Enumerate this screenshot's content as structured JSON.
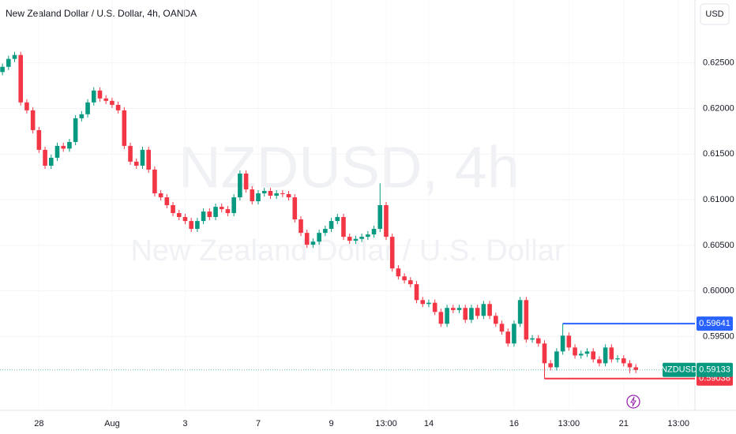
{
  "chart_data": {
    "type": "candlestick",
    "title": "New Zealand Dollar / U.S. Dollar, 4h, OANDA",
    "watermark_symbol": "NZDUSD, 4h",
    "watermark_name": "New Zealand Dollar / U.S. Dollar",
    "currency": "USD",
    "up_color": "#089981",
    "down_color": "#f23645",
    "open": [
      0.624,
      0.62457,
      0.62544,
      0.62587,
      0.62067,
      0.6198,
      0.61763,
      0.61547,
      0.61373,
      0.6146,
      0.6159,
      0.6156,
      0.61633,
      0.61893,
      0.61937,
      0.62067,
      0.62197,
      0.6211,
      0.62084,
      0.6204,
      0.6198,
      0.6159,
      0.61417,
      0.61373,
      0.61547,
      0.6133,
      0.6107,
      0.61026,
      0.6094,
      0.60853,
      0.6081,
      0.60766,
      0.6068,
      0.60766,
      0.6087,
      0.6081,
      0.60922,
      0.60896,
      0.60853,
      0.61026,
      0.61287,
      0.61113,
      0.60983,
      0.6107,
      0.61096,
      0.61044,
      0.6107,
      0.61061,
      0.61026,
      0.60784,
      0.60636,
      0.60506,
      0.6054,
      0.60636,
      0.6068,
      0.60766,
      0.6081,
      0.60593,
      0.6055,
      0.6057,
      0.60593,
      0.60619,
      0.6068,
      0.6094,
      0.60593,
      0.60246,
      0.60159,
      0.60116,
      0.60073,
      0.59899,
      0.59856,
      0.5987,
      0.59769,
      0.59639,
      0.59813,
      0.5979,
      0.59813,
      0.59683,
      0.59813,
      0.59726,
      0.59856,
      0.59726,
      0.59639,
      0.59553,
      0.59423,
      0.59639,
      0.59899,
      0.59466,
      0.5948,
      0.59423,
      0.59206,
      0.59162,
      0.59336,
      0.59509,
      0.59379,
      0.59292,
      0.5931,
      0.59336,
      0.59249,
      0.59206,
      0.59379,
      0.59249,
      0.5926,
      0.59206,
      0.59162
    ],
    "high": [
      0.62492,
      0.62579,
      0.62622,
      0.62622,
      0.62102,
      0.62015,
      0.61798,
      0.61582,
      0.61495,
      0.61625,
      0.61625,
      0.61668,
      0.61928,
      0.61972,
      0.62102,
      0.62232,
      0.62232,
      0.62145,
      0.62119,
      0.62075,
      0.62015,
      0.61625,
      0.61452,
      0.61582,
      0.61582,
      0.61365,
      0.61105,
      0.61061,
      0.60975,
      0.60888,
      0.60845,
      0.60801,
      0.60801,
      0.60905,
      0.60905,
      0.60957,
      0.60957,
      0.60931,
      0.61061,
      0.61322,
      0.61322,
      0.61148,
      0.61105,
      0.61131,
      0.61131,
      0.61105,
      0.61105,
      0.61096,
      0.61061,
      0.60819,
      0.60671,
      0.60575,
      0.60671,
      0.60715,
      0.60801,
      0.60845,
      0.60845,
      0.60628,
      0.60605,
      0.60628,
      0.60654,
      0.60715,
      0.6118,
      0.60975,
      0.60628,
      0.60281,
      0.60194,
      0.60151,
      0.60108,
      0.59934,
      0.59905,
      0.59905,
      0.59804,
      0.59848,
      0.59848,
      0.59848,
      0.59848,
      0.59848,
      0.59848,
      0.59891,
      0.59891,
      0.59761,
      0.59674,
      0.59588,
      0.59674,
      0.59934,
      0.59934,
      0.59515,
      0.59515,
      0.59458,
      0.59241,
      0.59371,
      0.59641,
      0.59544,
      0.59414,
      0.59345,
      0.59371,
      0.59371,
      0.59284,
      0.59414,
      0.59414,
      0.59295,
      0.59295,
      0.59241,
      0.59197
    ],
    "low": [
      0.62365,
      0.62422,
      0.62509,
      0.62032,
      0.61945,
      0.61728,
      0.61512,
      0.61338,
      0.61338,
      0.61425,
      0.61525,
      0.61525,
      0.61598,
      0.61858,
      0.61902,
      0.62032,
      0.62075,
      0.62049,
      0.62005,
      0.61945,
      0.61555,
      0.61382,
      0.61338,
      0.61338,
      0.61295,
      0.61035,
      0.60991,
      0.60905,
      0.60818,
      0.60775,
      0.60731,
      0.60645,
      0.60645,
      0.60731,
      0.60775,
      0.60775,
      0.60861,
      0.60818,
      0.60818,
      0.60991,
      0.61078,
      0.60948,
      0.60948,
      0.61035,
      0.61009,
      0.61009,
      0.61026,
      0.60991,
      0.60749,
      0.60601,
      0.60471,
      0.60471,
      0.60505,
      0.60601,
      0.60645,
      0.60731,
      0.60558,
      0.60515,
      0.60515,
      0.60535,
      0.60558,
      0.60584,
      0.60645,
      0.60558,
      0.60211,
      0.60124,
      0.60081,
      0.60038,
      0.59864,
      0.59821,
      0.59821,
      0.59734,
      0.59604,
      0.59604,
      0.59755,
      0.59755,
      0.59648,
      0.59648,
      0.59691,
      0.59691,
      0.59691,
      0.59604,
      0.59518,
      0.59388,
      0.59388,
      0.59604,
      0.59431,
      0.59431,
      0.59388,
      0.59038,
      0.59127,
      0.59127,
      0.59301,
      0.59344,
      0.59257,
      0.59257,
      0.59275,
      0.59214,
      0.59171,
      0.59171,
      0.59214,
      0.59214,
      0.59171,
      0.59098,
      0.59098
    ],
    "close": [
      0.62457,
      0.62544,
      0.62587,
      0.62067,
      0.6198,
      0.61763,
      0.61547,
      0.61373,
      0.6146,
      0.6159,
      0.6156,
      0.61633,
      0.61893,
      0.61937,
      0.62067,
      0.62197,
      0.6211,
      0.62084,
      0.6204,
      0.6198,
      0.6159,
      0.61417,
      0.61373,
      0.61547,
      0.6133,
      0.6107,
      0.61026,
      0.6094,
      0.60853,
      0.6081,
      0.60766,
      0.6068,
      0.60766,
      0.6087,
      0.6081,
      0.60922,
      0.60896,
      0.60853,
      0.61026,
      0.61287,
      0.61113,
      0.60983,
      0.6107,
      0.61096,
      0.61044,
      0.6107,
      0.61061,
      0.61026,
      0.60784,
      0.60636,
      0.60506,
      0.6054,
      0.60636,
      0.6068,
      0.60766,
      0.6081,
      0.60593,
      0.6055,
      0.6057,
      0.60593,
      0.60619,
      0.6068,
      0.6094,
      0.60593,
      0.60246,
      0.60159,
      0.60116,
      0.60073,
      0.59899,
      0.59856,
      0.5987,
      0.59769,
      0.59639,
      0.59813,
      0.5979,
      0.59813,
      0.59683,
      0.59813,
      0.59726,
      0.59856,
      0.59726,
      0.59639,
      0.59553,
      0.59423,
      0.59639,
      0.59899,
      0.59466,
      0.5948,
      0.59423,
      0.59206,
      0.59162,
      0.59336,
      0.59509,
      0.59379,
      0.59292,
      0.5931,
      0.59336,
      0.59249,
      0.59206,
      0.59379,
      0.59249,
      0.5926,
      0.59206,
      0.59162,
      0.59133
    ],
    "xlim": [
      -0.4,
      113.7
    ],
    "xticks": [
      {
        "value": 6,
        "label": "28"
      },
      {
        "value": 18,
        "label": "Aug"
      },
      {
        "value": 30,
        "label": "3"
      },
      {
        "value": 42,
        "label": "7"
      },
      {
        "value": 54,
        "label": "9"
      },
      {
        "value": 63,
        "label": "13:00"
      },
      {
        "value": 70,
        "label": "14"
      },
      {
        "value": 84,
        "label": "16"
      },
      {
        "value": 93,
        "label": "13:00"
      },
      {
        "value": 102,
        "label": "21"
      },
      {
        "value": 111,
        "label": "13:00"
      }
    ],
    "ylim": [
      0.5869,
      0.6319
    ],
    "yticks": [
      {
        "value": 0.595,
        "label": "0.59500"
      },
      {
        "value": 0.6,
        "label": "0.60000"
      },
      {
        "value": 0.605,
        "label": "0.60500"
      },
      {
        "value": 0.61,
        "label": "0.61000"
      },
      {
        "value": 0.615,
        "label": "0.61500"
      },
      {
        "value": 0.62,
        "label": "0.62000"
      },
      {
        "value": 0.625,
        "label": "0.62500"
      }
    ],
    "grid": true,
    "levels": [
      {
        "value": 0.59641,
        "color": "#2962ff",
        "edge": "high"
      },
      {
        "value": 0.59038,
        "color": "#f23645",
        "edge": "low"
      }
    ],
    "last_price": {
      "symbol": "NZDUSD",
      "value": 0.59133,
      "color": "#089981"
    }
  }
}
